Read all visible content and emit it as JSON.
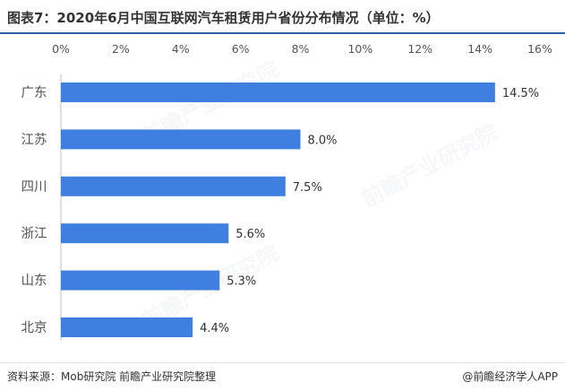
{
  "title": "图表7：2020年6月中国互联网汽车租赁用户省份分布情况（单位：%）",
  "watermark": "前瞻产业研究院",
  "footer": {
    "source": "资料来源：Mob研究院  前瞻产业研究院整理",
    "brand": "@前瞻经济学人APP"
  },
  "colors": {
    "bar": "#3f7fe0",
    "title_rule": "#2e5aa8"
  },
  "chart_data": {
    "type": "bar",
    "orientation": "horizontal",
    "title": "图表7：2020年6月中国互联网汽车租赁用户省份分布情况（单位：%）",
    "categories": [
      "广东",
      "江苏",
      "四川",
      "浙江",
      "山东",
      "北京"
    ],
    "values": [
      14.5,
      8.0,
      7.5,
      5.6,
      5.3,
      4.4
    ],
    "data_labels": [
      "14.5%",
      "8.0%",
      "7.5%",
      "5.6%",
      "5.3%",
      "4.4%"
    ],
    "xlim": [
      0,
      16
    ],
    "xticks": [
      0,
      2,
      4,
      6,
      8,
      10,
      12,
      14,
      16
    ],
    "xtick_labels": [
      "0%",
      "2%",
      "4%",
      "6%",
      "8%",
      "10%",
      "12%",
      "14%",
      "16%"
    ],
    "axis_position": "top",
    "grid": false,
    "legend": false
  }
}
